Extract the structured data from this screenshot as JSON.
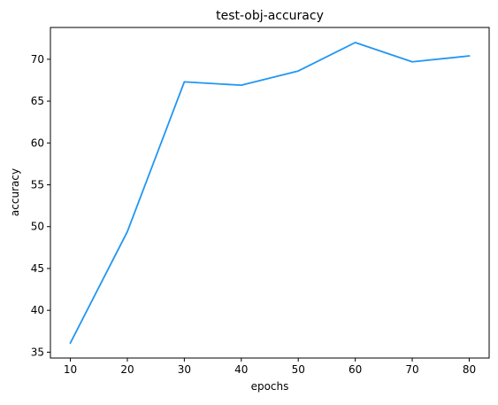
{
  "chart_data": {
    "type": "line",
    "title": "test-obj-accuracy",
    "xlabel": "epochs",
    "ylabel": "accuracy",
    "x": [
      10,
      20,
      30,
      40,
      50,
      60,
      70,
      80
    ],
    "series": [
      {
        "values": [
          36.1,
          49.4,
          67.3,
          66.9,
          68.6,
          72.0,
          69.7,
          70.4
        ],
        "color": "#2196f3"
      }
    ],
    "xlim": [
      6.5,
      83.5
    ],
    "ylim": [
      34.3,
      73.8
    ],
    "xticks": [
      10,
      20,
      30,
      40,
      50,
      60,
      70,
      80
    ],
    "yticks": [
      35,
      40,
      45,
      50,
      55,
      60,
      65,
      70
    ],
    "grid": false,
    "legend": "none"
  }
}
